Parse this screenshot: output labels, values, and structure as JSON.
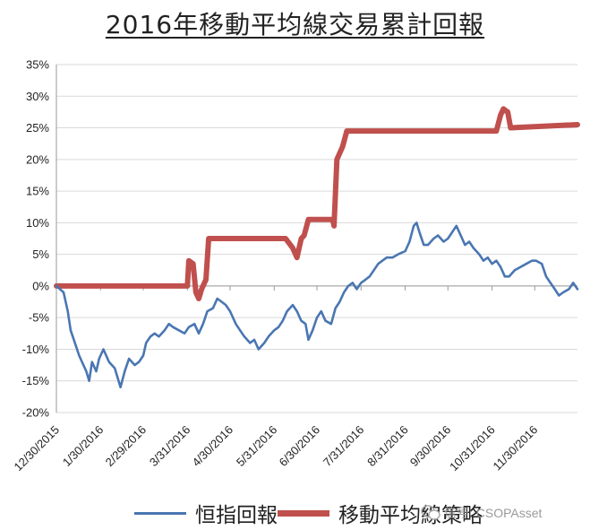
{
  "chart_data": {
    "type": "line",
    "title": "2016年移動平均線交易累計回報",
    "ylim": [
      -20,
      35
    ],
    "yticks": [
      35,
      30,
      25,
      20,
      15,
      10,
      5,
      0,
      -5,
      -10,
      -15,
      -20
    ],
    "ytick_labels": [
      "35%",
      "30%",
      "25%",
      "20%",
      "15%",
      "10%",
      "5%",
      "0%",
      "-5%",
      "-10%",
      "-15%",
      "-20%"
    ],
    "x_range": [
      "2015-12-30",
      "2016-12-30"
    ],
    "x_ticks": [
      "2015-12-30",
      "2016-01-30",
      "2016-02-29",
      "2016-03-31",
      "2016-04-30",
      "2016-05-31",
      "2016-06-30",
      "2016-07-31",
      "2016-08-31",
      "2016-09-30",
      "2016-10-31",
      "2016-11-30"
    ],
    "xtick_labels": [
      "12/30/2015",
      "1/30/2016",
      "2/29/2016",
      "3/31/2016",
      "4/30/2016",
      "5/31/2016",
      "6/30/2016",
      "7/31/2016",
      "8/31/2016",
      "9/30/2016",
      "10/31/2016",
      "11/30/2016"
    ],
    "grid": "horizontal",
    "legend_position": "bottom",
    "series": [
      {
        "name": "恒指回報",
        "color": "#4a76b2",
        "points": [
          [
            "2015-12-30",
            0
          ],
          [
            "2016-01-04",
            -1
          ],
          [
            "2016-01-07",
            -4
          ],
          [
            "2016-01-09",
            -7
          ],
          [
            "2016-01-12",
            -9
          ],
          [
            "2016-01-15",
            -11
          ],
          [
            "2016-01-18",
            -12.5
          ],
          [
            "2016-01-20",
            -13.5
          ],
          [
            "2016-01-22",
            -15
          ],
          [
            "2016-01-24",
            -12
          ],
          [
            "2016-01-27",
            -13.5
          ],
          [
            "2016-01-29",
            -11.5
          ],
          [
            "2016-02-01",
            -10
          ],
          [
            "2016-02-05",
            -12
          ],
          [
            "2016-02-09",
            -13
          ],
          [
            "2016-02-11",
            -14.5
          ],
          [
            "2016-02-13",
            -16
          ],
          [
            "2016-02-16",
            -13.5
          ],
          [
            "2016-02-19",
            -11.5
          ],
          [
            "2016-02-23",
            -12.5
          ],
          [
            "2016-02-26",
            -12
          ],
          [
            "2016-02-29",
            -11
          ],
          [
            "2016-03-02",
            -9
          ],
          [
            "2016-03-05",
            -8
          ],
          [
            "2016-03-08",
            -7.5
          ],
          [
            "2016-03-11",
            -8
          ],
          [
            "2016-03-15",
            -7
          ],
          [
            "2016-03-18",
            -6
          ],
          [
            "2016-03-21",
            -6.5
          ],
          [
            "2016-03-25",
            -7
          ],
          [
            "2016-03-29",
            -7.5
          ],
          [
            "2016-04-01",
            -6.5
          ],
          [
            "2016-04-05",
            -6
          ],
          [
            "2016-04-08",
            -7.5
          ],
          [
            "2016-04-11",
            -6
          ],
          [
            "2016-04-14",
            -4
          ],
          [
            "2016-04-18",
            -3.5
          ],
          [
            "2016-04-21",
            -2
          ],
          [
            "2016-04-24",
            -2.5
          ],
          [
            "2016-04-27",
            -3
          ],
          [
            "2016-04-30",
            -4
          ],
          [
            "2016-05-04",
            -6
          ],
          [
            "2016-05-07",
            -7
          ],
          [
            "2016-05-10",
            -8
          ],
          [
            "2016-05-14",
            -9
          ],
          [
            "2016-05-17",
            -8.5
          ],
          [
            "2016-05-20",
            -10
          ],
          [
            "2016-05-24",
            -9
          ],
          [
            "2016-05-27",
            -8
          ],
          [
            "2016-05-31",
            -7
          ],
          [
            "2016-06-03",
            -6.5
          ],
          [
            "2016-06-06",
            -5.5
          ],
          [
            "2016-06-09",
            -4
          ],
          [
            "2016-06-13",
            -3
          ],
          [
            "2016-06-16",
            -4
          ],
          [
            "2016-06-19",
            -5.5
          ],
          [
            "2016-06-22",
            -6
          ],
          [
            "2016-06-24",
            -8.5
          ],
          [
            "2016-06-27",
            -7
          ],
          [
            "2016-06-30",
            -5
          ],
          [
            "2016-07-03",
            -4
          ],
          [
            "2016-07-06",
            -5.5
          ],
          [
            "2016-07-10",
            -6
          ],
          [
            "2016-07-13",
            -3.5
          ],
          [
            "2016-07-16",
            -2.5
          ],
          [
            "2016-07-19",
            -1
          ],
          [
            "2016-07-22",
            0
          ],
          [
            "2016-07-25",
            0.5
          ],
          [
            "2016-07-28",
            -0.5
          ],
          [
            "2016-07-31",
            0.5
          ],
          [
            "2016-08-03",
            1
          ],
          [
            "2016-08-06",
            1.5
          ],
          [
            "2016-08-09",
            2.5
          ],
          [
            "2016-08-12",
            3.5
          ],
          [
            "2016-08-15",
            4
          ],
          [
            "2016-08-18",
            4.5
          ],
          [
            "2016-08-22",
            4.5
          ],
          [
            "2016-08-26",
            5
          ],
          [
            "2016-08-31",
            5.5
          ],
          [
            "2016-09-03",
            7
          ],
          [
            "2016-09-06",
            9.5
          ],
          [
            "2016-09-08",
            10
          ],
          [
            "2016-09-10",
            8.5
          ],
          [
            "2016-09-13",
            6.5
          ],
          [
            "2016-09-16",
            6.5
          ],
          [
            "2016-09-20",
            7.5
          ],
          [
            "2016-09-23",
            8
          ],
          [
            "2016-09-27",
            7
          ],
          [
            "2016-09-30",
            7.5
          ],
          [
            "2016-10-03",
            8.5
          ],
          [
            "2016-10-06",
            9.5
          ],
          [
            "2016-10-09",
            8
          ],
          [
            "2016-10-12",
            6.5
          ],
          [
            "2016-10-15",
            7
          ],
          [
            "2016-10-18",
            6
          ],
          [
            "2016-10-22",
            5
          ],
          [
            "2016-10-25",
            4
          ],
          [
            "2016-10-28",
            4.5
          ],
          [
            "2016-10-31",
            3.5
          ],
          [
            "2016-11-03",
            4
          ],
          [
            "2016-11-06",
            3
          ],
          [
            "2016-11-09",
            1.5
          ],
          [
            "2016-11-12",
            1.5
          ],
          [
            "2016-11-16",
            2.5
          ],
          [
            "2016-11-20",
            3
          ],
          [
            "2016-11-24",
            3.5
          ],
          [
            "2016-11-28",
            4
          ],
          [
            "2016-12-01",
            4
          ],
          [
            "2016-12-05",
            3.5
          ],
          [
            "2016-12-08",
            1.5
          ],
          [
            "2016-12-11",
            0.5
          ],
          [
            "2016-12-14",
            -0.5
          ],
          [
            "2016-12-17",
            -1.5
          ],
          [
            "2016-12-20",
            -1
          ],
          [
            "2016-12-24",
            -0.5
          ],
          [
            "2016-12-27",
            0.5
          ],
          [
            "2016-12-30",
            -0.5
          ]
        ]
      },
      {
        "name": "移動平均線策略",
        "color": "#c0504d",
        "points": [
          [
            "2015-12-30",
            0
          ],
          [
            "2016-03-31",
            0
          ],
          [
            "2016-04-01",
            4
          ],
          [
            "2016-04-04",
            3.5
          ],
          [
            "2016-04-06",
            -1
          ],
          [
            "2016-04-08",
            -2
          ],
          [
            "2016-04-10",
            -0.5
          ],
          [
            "2016-04-13",
            1
          ],
          [
            "2016-04-15",
            7.5
          ],
          [
            "2016-06-08",
            7.5
          ],
          [
            "2016-06-13",
            6
          ],
          [
            "2016-06-16",
            4.5
          ],
          [
            "2016-06-19",
            7.5
          ],
          [
            "2016-06-21",
            8
          ],
          [
            "2016-06-24",
            10.5
          ],
          [
            "2016-07-11",
            10.5
          ],
          [
            "2016-07-12",
            9.5
          ],
          [
            "2016-07-14",
            20
          ],
          [
            "2016-07-18",
            22
          ],
          [
            "2016-07-21",
            24.5
          ],
          [
            "2016-11-03",
            24.5
          ],
          [
            "2016-11-06",
            27
          ],
          [
            "2016-11-08",
            28
          ],
          [
            "2016-11-11",
            27.5
          ],
          [
            "2016-11-13",
            25
          ],
          [
            "2016-12-30",
            25.5
          ]
        ]
      }
    ]
  },
  "legend": [
    {
      "label": "恒指回報",
      "color": "#4a76b2"
    },
    {
      "label": "移動平均線策略",
      "color": "#c0504d"
    }
  ],
  "watermark": "信号: CSOPAsset"
}
